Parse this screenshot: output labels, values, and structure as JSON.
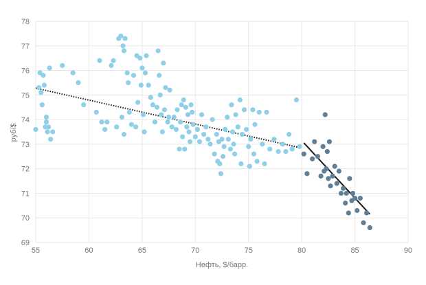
{
  "chart_data": {
    "type": "scatter",
    "xlabel": "Нефть, $/барр.",
    "ylabel": "руб/$",
    "xlim": [
      55,
      90
    ],
    "ylim": [
      69,
      78
    ],
    "x_ticks": [
      "55",
      "60",
      "65",
      "70",
      "75",
      "80",
      "85",
      "90"
    ],
    "y_ticks": [
      "69",
      "70",
      "71",
      "72",
      "73",
      "74",
      "75",
      "76",
      "77",
      "78"
    ],
    "grid": true,
    "legend": "none",
    "colors": {
      "series_light": "#8fcfe8",
      "series_dark": "#5f7f96",
      "trend": "#1a1a1a",
      "grid": "#e6e6e6",
      "axis_text": "#767676"
    },
    "series": [
      {
        "color": "series_light",
        "points": [
          [
            55.0,
            73.6
          ],
          [
            55.3,
            75.3
          ],
          [
            55.4,
            75.9
          ],
          [
            55.5,
            75.1
          ],
          [
            55.6,
            74.6
          ],
          [
            55.7,
            75.8
          ],
          [
            55.8,
            75.4
          ],
          [
            55.9,
            73.7
          ],
          [
            56.0,
            73.9
          ],
          [
            56.0,
            74.1
          ],
          [
            56.1,
            73.5
          ],
          [
            56.2,
            73.7
          ],
          [
            56.3,
            76.1
          ],
          [
            56.4,
            73.2
          ],
          [
            56.6,
            73.5
          ],
          [
            57.5,
            76.2
          ],
          [
            58.5,
            75.9
          ],
          [
            59.0,
            75.5
          ],
          [
            59.5,
            74.6
          ],
          [
            60.7,
            74.3
          ],
          [
            61.0,
            76.4
          ],
          [
            61.2,
            73.9
          ],
          [
            61.5,
            73.6
          ],
          [
            61.7,
            73.9
          ],
          [
            62.1,
            76.2
          ],
          [
            62.3,
            76.4
          ],
          [
            62.6,
            73.7
          ],
          [
            62.8,
            77.3
          ],
          [
            63.0,
            77.4
          ],
          [
            63.1,
            74.1
          ],
          [
            63.2,
            77.0
          ],
          [
            63.3,
            76.8
          ],
          [
            63.3,
            73.4
          ],
          [
            63.4,
            77.3
          ],
          [
            63.6,
            75.9
          ],
          [
            63.7,
            75.5
          ],
          [
            63.8,
            74.3
          ],
          [
            64.0,
            73.8
          ],
          [
            64.2,
            75.8
          ],
          [
            64.4,
            73.7
          ],
          [
            64.5,
            76.6
          ],
          [
            64.6,
            74.7
          ],
          [
            64.8,
            76.5
          ],
          [
            64.9,
            75.4
          ],
          [
            65.0,
            76.1
          ],
          [
            65.1,
            74.2
          ],
          [
            65.2,
            73.5
          ],
          [
            65.3,
            75.9
          ],
          [
            65.4,
            76.6
          ],
          [
            65.6,
            75.4
          ],
          [
            65.8,
            74.9
          ],
          [
            66.0,
            74.6
          ],
          [
            66.2,
            73.9
          ],
          [
            66.4,
            74.5
          ],
          [
            66.5,
            76.8
          ],
          [
            66.6,
            75.8
          ],
          [
            66.7,
            75.0
          ],
          [
            66.8,
            74.2
          ],
          [
            66.9,
            73.5
          ],
          [
            67.0,
            76.3
          ],
          [
            67.1,
            74.4
          ],
          [
            67.2,
            75.3
          ],
          [
            67.4,
            73.9
          ],
          [
            67.5,
            74.1
          ],
          [
            67.6,
            75.2
          ],
          [
            67.8,
            73.7
          ],
          [
            68.0,
            74.1
          ],
          [
            68.2,
            73.6
          ],
          [
            68.3,
            74.4
          ],
          [
            68.5,
            72.8
          ],
          [
            68.6,
            73.9
          ],
          [
            68.7,
            74.6
          ],
          [
            68.8,
            73.3
          ],
          [
            68.9,
            74.8
          ],
          [
            69.0,
            72.8
          ],
          [
            69.1,
            74.5
          ],
          [
            69.2,
            73.7
          ],
          [
            69.3,
            74.2
          ],
          [
            69.4,
            73.5
          ],
          [
            69.5,
            73.1
          ],
          [
            69.6,
            74.6
          ],
          [
            69.7,
            74.3
          ],
          [
            69.8,
            73.8
          ],
          [
            70.0,
            73.3
          ],
          [
            70.2,
            73.6
          ],
          [
            70.4,
            73.1
          ],
          [
            70.6,
            74.2
          ],
          [
            70.8,
            73.4
          ],
          [
            71.0,
            73.7
          ],
          [
            71.2,
            73.2
          ],
          [
            71.4,
            73.0
          ],
          [
            71.6,
            74.0
          ],
          [
            71.8,
            72.6
          ],
          [
            72.0,
            73.4
          ],
          [
            72.1,
            72.3
          ],
          [
            72.2,
            73.1
          ],
          [
            72.3,
            72.2
          ],
          [
            72.4,
            71.8
          ],
          [
            72.5,
            73.2
          ],
          [
            72.6,
            72.5
          ],
          [
            72.7,
            72.9
          ],
          [
            72.8,
            73.6
          ],
          [
            73.0,
            74.1
          ],
          [
            73.1,
            73.2
          ],
          [
            73.3,
            72.8
          ],
          [
            73.4,
            74.6
          ],
          [
            73.5,
            73.5
          ],
          [
            73.6,
            73.0
          ],
          [
            73.7,
            72.6
          ],
          [
            73.8,
            74.2
          ],
          [
            74.0,
            73.7
          ],
          [
            74.2,
            74.8
          ],
          [
            74.3,
            72.2
          ],
          [
            74.4,
            73.4
          ],
          [
            74.6,
            74.4
          ],
          [
            74.8,
            73.6
          ],
          [
            75.0,
            72.9
          ],
          [
            75.1,
            72.1
          ],
          [
            75.2,
            73.2
          ],
          [
            75.4,
            74.4
          ],
          [
            75.5,
            72.6
          ],
          [
            75.6,
            73.8
          ],
          [
            75.8,
            72.3
          ],
          [
            76.0,
            74.3
          ],
          [
            76.3,
            73.0
          ],
          [
            76.5,
            72.2
          ],
          [
            76.7,
            74.3
          ],
          [
            77.0,
            72.8
          ],
          [
            77.4,
            73.2
          ],
          [
            77.8,
            72.7
          ],
          [
            78.2,
            73.0
          ],
          [
            78.5,
            72.7
          ],
          [
            78.8,
            73.4
          ],
          [
            79.1,
            72.8
          ],
          [
            79.5,
            74.8
          ],
          [
            79.8,
            72.9
          ]
        ]
      },
      {
        "color": "series_dark",
        "points": [
          [
            80.2,
            72.6
          ],
          [
            80.5,
            71.8
          ],
          [
            81.0,
            72.4
          ],
          [
            81.2,
            73.1
          ],
          [
            81.5,
            72.5
          ],
          [
            81.8,
            71.7
          ],
          [
            82.0,
            72.9
          ],
          [
            82.1,
            71.9
          ],
          [
            82.2,
            74.2
          ],
          [
            82.3,
            72.0
          ],
          [
            82.4,
            72.7
          ],
          [
            82.5,
            71.6
          ],
          [
            82.6,
            73.1
          ],
          [
            82.7,
            71.3
          ],
          [
            82.9,
            71.7
          ],
          [
            83.1,
            72.1
          ],
          [
            83.3,
            71.4
          ],
          [
            83.5,
            71.9
          ],
          [
            83.7,
            71.0
          ],
          [
            83.9,
            71.2
          ],
          [
            84.1,
            70.6
          ],
          [
            84.2,
            71.0
          ],
          [
            84.4,
            70.2
          ],
          [
            84.5,
            71.6
          ],
          [
            84.7,
            70.7
          ],
          [
            84.8,
            71.0
          ],
          [
            85.0,
            70.8
          ],
          [
            85.2,
            70.3
          ],
          [
            85.5,
            70.8
          ],
          [
            85.8,
            69.8
          ],
          [
            86.1,
            70.2
          ],
          [
            86.4,
            69.6
          ]
        ]
      }
    ],
    "trendlines": [
      {
        "style": "dotted",
        "x": [
          55.0,
          79.6
        ],
        "y": [
          75.28,
          72.88
        ]
      },
      {
        "style": "solid",
        "x": [
          80.2,
          86.4
        ],
        "y": [
          73.05,
          70.15
        ]
      }
    ]
  }
}
